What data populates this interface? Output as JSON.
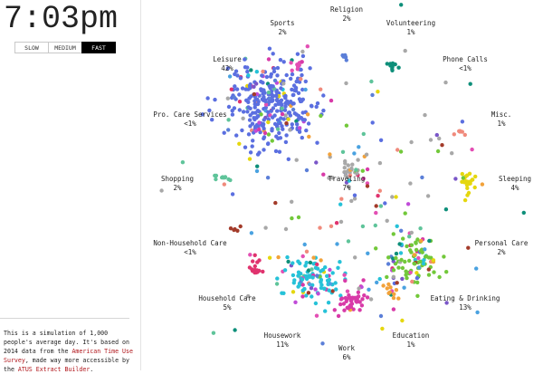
{
  "clock": "7:03pm",
  "speed": {
    "options": [
      "SLOW",
      "MEDIUM",
      "FAST"
    ],
    "selected": "FAST"
  },
  "description": {
    "before_link1": "This is a simulation of 1,000 people's average day. It's based on 2014 data from the ",
    "link1": "American Time Use Survey",
    "between_links": ", made way more accessible by the ",
    "link2": "ATUS Extract Builder",
    "after_link2": "."
  },
  "activities": [
    {
      "id": "religion",
      "name": "Religion",
      "pct": "2%",
      "color": "#5b7fd8"
    },
    {
      "id": "sports",
      "name": "Sports",
      "pct": "2%",
      "color": "#e34fb4"
    },
    {
      "id": "volunteering",
      "name": "Volunteering",
      "pct": "1%",
      "color": "#0e8f7a"
    },
    {
      "id": "leisure",
      "name": "Leisure",
      "pct": "42%",
      "color": "#5b6fe0"
    },
    {
      "id": "phone-calls",
      "name": "Phone Calls",
      "pct": "<1%",
      "color": "#c04bd8"
    },
    {
      "id": "pro-care-services",
      "name": "Pro. Care Services",
      "pct": "<1%",
      "color": "#7a56c8"
    },
    {
      "id": "misc",
      "name": "Misc.",
      "pct": "1%",
      "color": "#f08a7c"
    },
    {
      "id": "shopping",
      "name": "Shopping",
      "pct": "2%",
      "color": "#5fc49a"
    },
    {
      "id": "traveling",
      "name": "Traveling",
      "pct": "7%",
      "color": "#a8a8a8"
    },
    {
      "id": "sleeping",
      "name": "Sleeping",
      "pct": "4%",
      "color": "#e5d70e"
    },
    {
      "id": "non-household-care",
      "name": "Non-Household Care",
      "pct": "<1%",
      "color": "#a33b2a"
    },
    {
      "id": "personal-care",
      "name": "Personal Care",
      "pct": "2%",
      "color": "#72c83a"
    },
    {
      "id": "household-care",
      "name": "Household Care",
      "pct": "5%",
      "color": "#e0336e"
    },
    {
      "id": "eating-drinking",
      "name": "Eating & Drinking",
      "pct": "13%",
      "color": "#4aa2e0"
    },
    {
      "id": "housework",
      "name": "Housework",
      "pct": "11%",
      "color": "#26c2d8"
    },
    {
      "id": "education",
      "name": "Education",
      "pct": "1%",
      "color": "#f2a23a"
    },
    {
      "id": "work",
      "name": "Work",
      "pct": "6%",
      "color": "#d83aa8"
    }
  ]
}
